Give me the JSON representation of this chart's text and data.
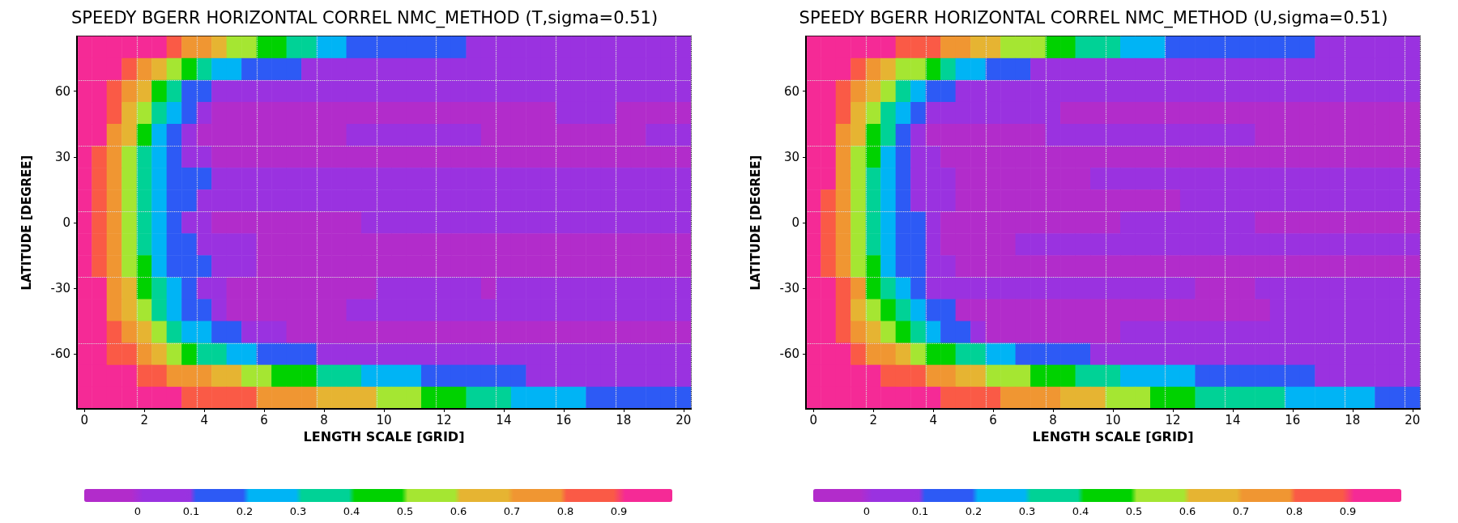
{
  "chart_data": [
    {
      "type": "heatmap",
      "title": "SPEEDY BGERR HORIZONTAL CORREL NMC_METHOD (T,sigma=0.51)",
      "xlabel": "LENGTH SCALE [GRID]",
      "ylabel": "LATITUDE [DEGREE]",
      "grid": true,
      "clim": [
        -0.1,
        1
      ],
      "cticks": [
        0,
        0.1,
        0.2,
        0.3,
        0.4,
        0.5,
        0.6,
        0.7,
        0.8,
        0.9
      ],
      "colors": [
        "#b22ccb",
        "#9a32e0",
        "#2d5af5",
        "#00b4f5",
        "#00d296",
        "#00d200",
        "#a5e632",
        "#e6b432",
        "#f09632",
        "#fa5a46",
        "#f52a96"
      ],
      "categories": [
        "0",
        null,
        null,
        null,
        "2",
        null,
        null,
        null,
        "4",
        null,
        null,
        null,
        "6",
        null,
        null,
        null,
        "8",
        null,
        null,
        null,
        "10",
        null,
        null,
        null,
        "12",
        null,
        null,
        null,
        "14",
        null,
        null,
        null,
        "16",
        null,
        null,
        null,
        "18",
        null,
        null,
        null,
        "20"
      ],
      "y_categories": [
        null,
        null,
        "60",
        null,
        null,
        "30",
        null,
        null,
        "0",
        null,
        null,
        "-30",
        null,
        null,
        "-60",
        null,
        null
      ],
      "cells": [
        [
          0.95,
          0.95,
          0.95,
          0.95,
          0.95,
          0.95,
          0.85,
          0.75,
          0.75,
          0.65,
          0.55,
          0.55,
          0.45,
          0.45,
          0.35,
          0.35,
          0.25,
          0.25,
          0.15,
          0.15,
          0.15,
          0.15,
          0.15,
          0.15,
          0.15,
          0.15,
          0.05,
          0.05,
          0.05,
          0.05,
          0.05,
          0.05,
          0.05,
          0.05,
          0.05,
          0.05,
          0.05,
          0.05,
          0.05,
          0.05,
          0.05
        ],
        [
          0.95,
          0.95,
          0.95,
          0.85,
          0.75,
          0.65,
          0.55,
          0.45,
          0.35,
          0.25,
          0.25,
          0.15,
          0.15,
          0.15,
          0.15,
          0.05,
          0.05,
          0.05,
          0.05,
          0.05,
          0.05,
          0.05,
          0.05,
          0.05,
          0.05,
          0.05,
          0.05,
          0.05,
          0.05,
          0.05,
          0.05,
          0.05,
          0.05,
          0.05,
          0.05,
          0.05,
          0.05,
          0.05,
          0.05,
          0.05,
          0.05
        ],
        [
          0.95,
          0.95,
          0.85,
          0.75,
          0.65,
          0.45,
          0.35,
          0.15,
          0.15,
          0.05,
          0.05,
          0.05,
          0.05,
          0.05,
          0.05,
          0.05,
          0.05,
          0.05,
          0.05,
          0.05,
          0.05,
          0.05,
          0.05,
          0.05,
          0.05,
          0.05,
          0.05,
          0.05,
          0.05,
          0.05,
          0.05,
          0.05,
          0.05,
          0.05,
          0.05,
          0.05,
          0.05,
          0.05,
          0.05,
          0.05,
          0.05
        ],
        [
          0.95,
          0.95,
          0.85,
          0.65,
          0.55,
          0.35,
          0.25,
          0.15,
          0.05,
          -0.05,
          -0.05,
          -0.05,
          -0.05,
          -0.05,
          -0.05,
          -0.05,
          -0.05,
          -0.05,
          -0.05,
          -0.05,
          -0.05,
          -0.05,
          -0.05,
          -0.05,
          -0.05,
          -0.05,
          -0.05,
          -0.05,
          -0.05,
          -0.05,
          -0.05,
          -0.05,
          0.05,
          0.05,
          0.05,
          0.05,
          -0.05,
          -0.05,
          -0.05,
          -0.05,
          -0.05
        ],
        [
          0.95,
          0.95,
          0.75,
          0.65,
          0.45,
          0.25,
          0.15,
          0.05,
          -0.05,
          -0.05,
          -0.05,
          -0.05,
          -0.05,
          -0.05,
          -0.05,
          -0.05,
          -0.05,
          -0.05,
          0.05,
          0.05,
          0.05,
          0.05,
          0.05,
          0.05,
          0.05,
          0.05,
          0.05,
          -0.05,
          -0.05,
          -0.05,
          -0.05,
          -0.05,
          -0.05,
          -0.05,
          -0.05,
          -0.05,
          -0.05,
          -0.05,
          0.05,
          0.05,
          0.05
        ],
        [
          0.95,
          0.85,
          0.75,
          0.55,
          0.35,
          0.25,
          0.15,
          0.05,
          0.05,
          -0.05,
          -0.05,
          -0.05,
          -0.05,
          -0.05,
          -0.05,
          -0.05,
          -0.05,
          -0.05,
          -0.05,
          -0.05,
          -0.05,
          -0.05,
          -0.05,
          -0.05,
          -0.05,
          -0.05,
          -0.05,
          -0.05,
          -0.05,
          -0.05,
          -0.05,
          -0.05,
          -0.05,
          -0.05,
          -0.05,
          -0.05,
          -0.05,
          -0.05,
          -0.05,
          -0.05,
          -0.05
        ],
        [
          0.95,
          0.85,
          0.75,
          0.55,
          0.35,
          0.25,
          0.15,
          0.15,
          0.15,
          0.05,
          0.05,
          0.05,
          0.05,
          0.05,
          0.05,
          0.05,
          0.05,
          0.05,
          0.05,
          0.05,
          0.05,
          0.05,
          0.05,
          0.05,
          0.05,
          0.05,
          0.05,
          0.05,
          0.05,
          0.05,
          0.05,
          0.05,
          0.05,
          0.05,
          0.05,
          0.05,
          0.05,
          0.05,
          0.05,
          0.05,
          0.05
        ],
        [
          0.95,
          0.85,
          0.75,
          0.55,
          0.35,
          0.25,
          0.15,
          0.15,
          0.05,
          0.05,
          0.05,
          0.05,
          0.05,
          0.05,
          0.05,
          0.05,
          0.05,
          0.05,
          0.05,
          0.05,
          0.05,
          0.05,
          0.05,
          0.05,
          0.05,
          0.05,
          0.05,
          0.05,
          0.05,
          0.05,
          0.05,
          0.05,
          0.05,
          0.05,
          0.05,
          0.05,
          0.05,
          0.05,
          0.05,
          0.05,
          0.05
        ],
        [
          0.95,
          0.85,
          0.75,
          0.55,
          0.35,
          0.25,
          0.15,
          0.05,
          0.05,
          -0.05,
          -0.05,
          -0.05,
          -0.05,
          -0.05,
          -0.05,
          -0.05,
          -0.05,
          -0.05,
          -0.05,
          0.05,
          0.05,
          0.05,
          0.05,
          0.05,
          0.05,
          0.05,
          0.05,
          0.05,
          0.05,
          0.05,
          0.05,
          0.05,
          0.05,
          0.05,
          0.05,
          0.05,
          0.05,
          0.05,
          0.05,
          0.05,
          0.05
        ],
        [
          0.95,
          0.85,
          0.75,
          0.55,
          0.35,
          0.25,
          0.15,
          0.15,
          0.05,
          0.05,
          0.05,
          0.05,
          -0.05,
          -0.05,
          -0.05,
          -0.05,
          -0.05,
          -0.05,
          -0.05,
          -0.05,
          -0.05,
          -0.05,
          -0.05,
          -0.05,
          -0.05,
          -0.05,
          -0.05,
          -0.05,
          -0.05,
          -0.05,
          -0.05,
          -0.05,
          -0.05,
          -0.05,
          -0.05,
          -0.05,
          -0.05,
          -0.05,
          -0.05,
          -0.05,
          -0.05
        ],
        [
          0.95,
          0.85,
          0.75,
          0.55,
          0.45,
          0.25,
          0.15,
          0.15,
          0.15,
          0.05,
          0.05,
          0.05,
          -0.05,
          -0.05,
          -0.05,
          -0.05,
          -0.05,
          -0.05,
          -0.05,
          -0.05,
          -0.05,
          -0.05,
          -0.05,
          -0.05,
          -0.05,
          -0.05,
          -0.05,
          -0.05,
          -0.05,
          -0.05,
          -0.05,
          -0.05,
          -0.05,
          -0.05,
          -0.05,
          -0.05,
          -0.05,
          -0.05,
          -0.05,
          -0.05,
          -0.05
        ],
        [
          0.95,
          0.95,
          0.75,
          0.65,
          0.45,
          0.35,
          0.25,
          0.15,
          0.05,
          0.05,
          -0.05,
          -0.05,
          -0.05,
          -0.05,
          -0.05,
          -0.05,
          -0.05,
          -0.05,
          -0.05,
          -0.05,
          0.05,
          0.05,
          0.05,
          0.05,
          0.05,
          0.05,
          0.05,
          -0.05,
          0.05,
          0.05,
          0.05,
          0.05,
          0.05,
          0.05,
          0.05,
          0.05,
          0.05,
          0.05,
          0.05,
          0.05,
          0.05
        ],
        [
          0.95,
          0.95,
          0.75,
          0.65,
          0.55,
          0.35,
          0.25,
          0.15,
          0.15,
          0.05,
          -0.05,
          -0.05,
          -0.05,
          -0.05,
          -0.05,
          -0.05,
          -0.05,
          -0.05,
          0.05,
          0.05,
          0.05,
          0.05,
          0.05,
          0.05,
          0.05,
          0.05,
          0.05,
          0.05,
          0.05,
          0.05,
          0.05,
          0.05,
          0.05,
          0.05,
          0.05,
          0.05,
          0.05,
          0.05,
          0.05,
          0.05,
          0.05
        ],
        [
          0.95,
          0.95,
          0.85,
          0.75,
          0.65,
          0.55,
          0.35,
          0.25,
          0.25,
          0.15,
          0.15,
          0.05,
          0.05,
          0.05,
          -0.05,
          -0.05,
          -0.05,
          -0.05,
          -0.05,
          -0.05,
          -0.05,
          -0.05,
          -0.05,
          -0.05,
          -0.05,
          -0.05,
          -0.05,
          -0.05,
          -0.05,
          -0.05,
          -0.05,
          -0.05,
          -0.05,
          -0.05,
          -0.05,
          -0.05,
          -0.05,
          -0.05,
          -0.05,
          -0.05,
          -0.05
        ],
        [
          0.95,
          0.95,
          0.85,
          0.85,
          0.75,
          0.65,
          0.55,
          0.45,
          0.35,
          0.35,
          0.25,
          0.25,
          0.15,
          0.15,
          0.15,
          0.15,
          0.05,
          0.05,
          0.05,
          0.05,
          0.05,
          0.05,
          0.05,
          0.05,
          0.05,
          0.05,
          0.05,
          0.05,
          0.05,
          0.05,
          0.05,
          0.05,
          0.05,
          0.05,
          0.05,
          0.05,
          0.05,
          0.05,
          0.05,
          0.05,
          0.05
        ],
        [
          0.95,
          0.95,
          0.95,
          0.95,
          0.85,
          0.85,
          0.75,
          0.75,
          0.75,
          0.65,
          0.65,
          0.55,
          0.55,
          0.45,
          0.45,
          0.45,
          0.35,
          0.35,
          0.35,
          0.25,
          0.25,
          0.25,
          0.25,
          0.15,
          0.15,
          0.15,
          0.15,
          0.15,
          0.15,
          0.15,
          0.05,
          0.05,
          0.05,
          0.05,
          0.05,
          0.05,
          0.05,
          0.05,
          0.05,
          0.05,
          0.05
        ],
        [
          0.95,
          0.95,
          0.95,
          0.95,
          0.95,
          0.95,
          0.95,
          0.85,
          0.85,
          0.85,
          0.85,
          0.85,
          0.75,
          0.75,
          0.75,
          0.75,
          0.65,
          0.65,
          0.65,
          0.65,
          0.55,
          0.55,
          0.55,
          0.45,
          0.45,
          0.45,
          0.35,
          0.35,
          0.35,
          0.25,
          0.25,
          0.25,
          0.25,
          0.25,
          0.15,
          0.15,
          0.15,
          0.15,
          0.15,
          0.15,
          0.15
        ]
      ]
    },
    {
      "type": "heatmap",
      "title": "SPEEDY BGERR HORIZONTAL CORREL NMC_METHOD (U,sigma=0.51)",
      "xlabel": "LENGTH SCALE [GRID]",
      "ylabel": "LATITUDE [DEGREE]",
      "grid": true,
      "clim": [
        -0.1,
        1
      ],
      "cticks": [
        0,
        0.1,
        0.2,
        0.3,
        0.4,
        0.5,
        0.6,
        0.7,
        0.8,
        0.9
      ],
      "colors": [
        "#b22ccb",
        "#9a32e0",
        "#2d5af5",
        "#00b4f5",
        "#00d296",
        "#00d200",
        "#a5e632",
        "#e6b432",
        "#f09632",
        "#fa5a46",
        "#f52a96"
      ],
      "categories": [
        "0",
        null,
        null,
        null,
        "2",
        null,
        null,
        null,
        "4",
        null,
        null,
        null,
        "6",
        null,
        null,
        null,
        "8",
        null,
        null,
        null,
        "10",
        null,
        null,
        null,
        "12",
        null,
        null,
        null,
        "14",
        null,
        null,
        null,
        "16",
        null,
        null,
        null,
        "18",
        null,
        null,
        null,
        "20"
      ],
      "y_categories": [
        null,
        null,
        "60",
        null,
        null,
        "30",
        null,
        null,
        "0",
        null,
        null,
        "-30",
        null,
        null,
        "-60",
        null,
        null
      ],
      "cells": [
        [
          0.95,
          0.95,
          0.95,
          0.95,
          0.95,
          0.95,
          0.85,
          0.85,
          0.85,
          0.75,
          0.75,
          0.65,
          0.65,
          0.55,
          0.55,
          0.55,
          0.45,
          0.45,
          0.35,
          0.35,
          0.35,
          0.25,
          0.25,
          0.25,
          0.15,
          0.15,
          0.15,
          0.15,
          0.15,
          0.15,
          0.15,
          0.15,
          0.15,
          0.15,
          0.05,
          0.05,
          0.05,
          0.05,
          0.05,
          0.05,
          0.05
        ],
        [
          0.95,
          0.95,
          0.95,
          0.85,
          0.75,
          0.65,
          0.55,
          0.55,
          0.45,
          0.35,
          0.25,
          0.25,
          0.15,
          0.15,
          0.15,
          0.05,
          0.05,
          0.05,
          0.05,
          0.05,
          0.05,
          0.05,
          0.05,
          0.05,
          0.05,
          0.05,
          0.05,
          0.05,
          0.05,
          0.05,
          0.05,
          0.05,
          0.05,
          0.05,
          0.05,
          0.05,
          0.05,
          0.05,
          0.05,
          0.05,
          0.05
        ],
        [
          0.95,
          0.95,
          0.85,
          0.75,
          0.65,
          0.55,
          0.35,
          0.25,
          0.15,
          0.15,
          0.05,
          0.05,
          0.05,
          0.05,
          0.05,
          0.05,
          0.05,
          0.05,
          0.05,
          0.05,
          0.05,
          0.05,
          0.05,
          0.05,
          0.05,
          0.05,
          0.05,
          0.05,
          0.05,
          0.05,
          0.05,
          0.05,
          0.05,
          0.05,
          0.05,
          0.05,
          0.05,
          0.05,
          0.05,
          0.05,
          0.05
        ],
        [
          0.95,
          0.95,
          0.85,
          0.65,
          0.55,
          0.35,
          0.25,
          0.15,
          0.05,
          0.05,
          0.05,
          0.05,
          0.05,
          0.05,
          0.05,
          0.05,
          0.05,
          -0.05,
          -0.05,
          -0.05,
          -0.05,
          -0.05,
          -0.05,
          -0.05,
          -0.05,
          -0.05,
          -0.05,
          -0.05,
          -0.05,
          -0.05,
          -0.05,
          -0.05,
          -0.05,
          -0.05,
          -0.05,
          -0.05,
          -0.05,
          -0.05,
          -0.05,
          -0.05,
          -0.05
        ],
        [
          0.95,
          0.95,
          0.75,
          0.65,
          0.45,
          0.35,
          0.15,
          0.05,
          -0.05,
          -0.05,
          -0.05,
          -0.05,
          -0.05,
          -0.05,
          -0.05,
          -0.05,
          0.05,
          0.05,
          0.05,
          0.05,
          0.05,
          0.05,
          0.05,
          0.05,
          0.05,
          0.05,
          0.05,
          0.05,
          0.05,
          0.05,
          -0.05,
          -0.05,
          -0.05,
          -0.05,
          -0.05,
          -0.05,
          -0.05,
          -0.05,
          -0.05,
          -0.05,
          -0.05
        ],
        [
          0.95,
          0.95,
          0.75,
          0.55,
          0.45,
          0.25,
          0.15,
          0.05,
          0.05,
          -0.05,
          -0.05,
          -0.05,
          -0.05,
          -0.05,
          -0.05,
          -0.05,
          -0.05,
          -0.05,
          -0.05,
          -0.05,
          -0.05,
          -0.05,
          -0.05,
          -0.05,
          -0.05,
          -0.05,
          -0.05,
          -0.05,
          -0.05,
          -0.05,
          -0.05,
          -0.05,
          -0.05,
          -0.05,
          -0.05,
          -0.05,
          -0.05,
          -0.05,
          -0.05,
          -0.05,
          -0.05
        ],
        [
          0.95,
          0.95,
          0.75,
          0.55,
          0.35,
          0.25,
          0.15,
          0.05,
          0.05,
          0.05,
          -0.05,
          -0.05,
          -0.05,
          -0.05,
          -0.05,
          -0.05,
          -0.05,
          -0.05,
          -0.05,
          0.05,
          0.05,
          0.05,
          0.05,
          0.05,
          0.05,
          0.05,
          0.05,
          0.05,
          0.05,
          0.05,
          0.05,
          0.05,
          0.05,
          0.05,
          0.05,
          0.05,
          0.05,
          0.05,
          0.05,
          0.05,
          0.05
        ],
        [
          0.95,
          0.85,
          0.75,
          0.55,
          0.35,
          0.25,
          0.15,
          0.05,
          0.05,
          0.05,
          -0.05,
          -0.05,
          -0.05,
          -0.05,
          -0.05,
          -0.05,
          -0.05,
          -0.05,
          -0.05,
          -0.05,
          -0.05,
          -0.05,
          -0.05,
          -0.05,
          -0.05,
          0.05,
          0.05,
          0.05,
          0.05,
          0.05,
          0.05,
          0.05,
          0.05,
          0.05,
          0.05,
          0.05,
          0.05,
          0.05,
          0.05,
          0.05,
          0.05
        ],
        [
          0.95,
          0.85,
          0.75,
          0.55,
          0.35,
          0.25,
          0.15,
          0.15,
          0.05,
          -0.05,
          -0.05,
          -0.05,
          -0.05,
          -0.05,
          -0.05,
          -0.05,
          -0.05,
          -0.05,
          -0.05,
          -0.05,
          -0.05,
          0.05,
          0.05,
          0.05,
          0.05,
          0.05,
          0.05,
          0.05,
          0.05,
          0.05,
          -0.05,
          -0.05,
          -0.05,
          -0.05,
          -0.05,
          -0.05,
          -0.05,
          -0.05,
          -0.05,
          -0.05,
          -0.05
        ],
        [
          0.95,
          0.85,
          0.75,
          0.55,
          0.35,
          0.25,
          0.15,
          0.15,
          0.05,
          -0.05,
          -0.05,
          -0.05,
          -0.05,
          -0.05,
          0.05,
          0.05,
          0.05,
          0.05,
          0.05,
          0.05,
          0.05,
          0.05,
          0.05,
          0.05,
          0.05,
          0.05,
          0.05,
          0.05,
          0.05,
          0.05,
          0.05,
          0.05,
          0.05,
          0.05,
          0.05,
          0.05,
          0.05,
          0.05,
          0.05,
          0.05,
          0.05
        ],
        [
          0.95,
          0.85,
          0.75,
          0.55,
          0.45,
          0.25,
          0.15,
          0.15,
          0.05,
          0.05,
          -0.05,
          -0.05,
          -0.05,
          -0.05,
          -0.05,
          -0.05,
          -0.05,
          -0.05,
          -0.05,
          -0.05,
          -0.05,
          -0.05,
          -0.05,
          -0.05,
          -0.05,
          -0.05,
          -0.05,
          -0.05,
          -0.05,
          -0.05,
          -0.05,
          -0.05,
          -0.05,
          -0.05,
          -0.05,
          -0.05,
          -0.05,
          -0.05,
          -0.05,
          -0.05,
          -0.05
        ],
        [
          0.95,
          0.95,
          0.85,
          0.75,
          0.45,
          0.35,
          0.25,
          0.15,
          0.05,
          0.05,
          0.05,
          0.05,
          0.05,
          0.05,
          0.05,
          0.05,
          0.05,
          0.05,
          0.05,
          0.05,
          0.05,
          0.05,
          0.05,
          0.05,
          0.05,
          0.05,
          -0.05,
          -0.05,
          -0.05,
          -0.05,
          0.05,
          0.05,
          0.05,
          0.05,
          0.05,
          0.05,
          0.05,
          0.05,
          0.05,
          0.05,
          0.05
        ],
        [
          0.95,
          0.95,
          0.85,
          0.65,
          0.55,
          0.45,
          0.35,
          0.25,
          0.15,
          0.15,
          -0.05,
          -0.05,
          -0.05,
          -0.05,
          -0.05,
          -0.05,
          -0.05,
          -0.05,
          -0.05,
          -0.05,
          -0.05,
          -0.05,
          -0.05,
          -0.05,
          -0.05,
          -0.05,
          -0.05,
          -0.05,
          -0.05,
          -0.05,
          -0.05,
          0.05,
          0.05,
          0.05,
          0.05,
          0.05,
          0.05,
          0.05,
          0.05,
          0.05,
          0.05
        ],
        [
          0.95,
          0.95,
          0.85,
          0.75,
          0.65,
          0.55,
          0.45,
          0.35,
          0.25,
          0.15,
          0.15,
          0.05,
          -0.05,
          -0.05,
          -0.05,
          -0.05,
          -0.05,
          -0.05,
          -0.05,
          -0.05,
          -0.05,
          0.05,
          0.05,
          0.05,
          0.05,
          0.05,
          0.05,
          0.05,
          0.05,
          0.05,
          0.05,
          0.05,
          0.05,
          0.05,
          0.05,
          0.05,
          0.05,
          0.05,
          0.05,
          0.05,
          0.05
        ],
        [
          0.95,
          0.95,
          0.95,
          0.85,
          0.75,
          0.75,
          0.65,
          0.55,
          0.45,
          0.45,
          0.35,
          0.35,
          0.25,
          0.25,
          0.15,
          0.15,
          0.15,
          0.15,
          0.15,
          0.05,
          0.05,
          0.05,
          0.05,
          0.05,
          0.05,
          0.05,
          0.05,
          0.05,
          0.05,
          0.05,
          0.05,
          0.05,
          0.05,
          0.05,
          0.05,
          0.05,
          0.05,
          0.05,
          0.05,
          0.05,
          0.05
        ],
        [
          0.95,
          0.95,
          0.95,
          0.95,
          0.95,
          0.85,
          0.85,
          0.85,
          0.75,
          0.75,
          0.65,
          0.65,
          0.55,
          0.55,
          0.55,
          0.45,
          0.45,
          0.45,
          0.35,
          0.35,
          0.35,
          0.25,
          0.25,
          0.25,
          0.25,
          0.25,
          0.15,
          0.15,
          0.15,
          0.15,
          0.15,
          0.15,
          0.15,
          0.15,
          0.05,
          0.05,
          0.05,
          0.05,
          0.05,
          0.05,
          0.05
        ],
        [
          0.95,
          0.95,
          0.95,
          0.95,
          0.95,
          0.95,
          0.95,
          0.95,
          0.95,
          0.85,
          0.85,
          0.85,
          0.85,
          0.75,
          0.75,
          0.75,
          0.75,
          0.65,
          0.65,
          0.65,
          0.55,
          0.55,
          0.55,
          0.45,
          0.45,
          0.45,
          0.35,
          0.35,
          0.35,
          0.35,
          0.35,
          0.35,
          0.25,
          0.25,
          0.25,
          0.25,
          0.25,
          0.25,
          0.15,
          0.15,
          0.15
        ]
      ]
    }
  ]
}
